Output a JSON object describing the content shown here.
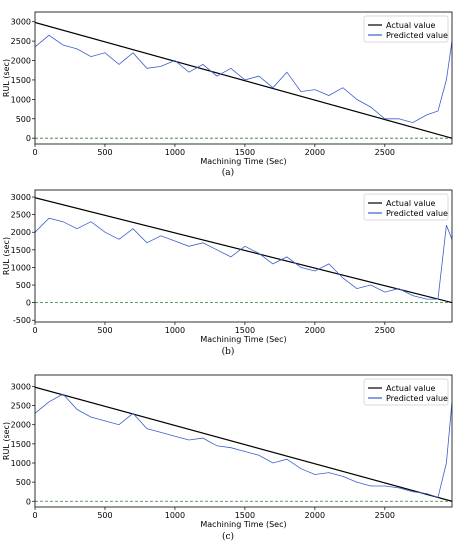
{
  "chart_data": [
    {
      "type": "line",
      "caption": "(a)",
      "xlabel": "Machining Time (Sec)",
      "ylabel": "RUL (sec)",
      "xlim": [
        0,
        2980
      ],
      "ylim": [
        -150,
        3250
      ],
      "xticks": [
        0,
        500,
        1000,
        1500,
        2000,
        2500
      ],
      "yticks": [
        0,
        500,
        1000,
        1500,
        2000,
        2500,
        3000
      ],
      "legend_position": "top-right",
      "baseline": {
        "y": 0,
        "color": "#2e7d32",
        "style": "dashed"
      },
      "series": [
        {
          "name": "Actual value",
          "color": "#000000",
          "x": [
            0,
            2980
          ],
          "y": [
            2980,
            0
          ]
        },
        {
          "name": "Predicted value",
          "color": "#3a5fcd",
          "x": [
            0,
            100,
            200,
            300,
            400,
            500,
            600,
            700,
            800,
            900,
            1000,
            1100,
            1200,
            1300,
            1400,
            1500,
            1600,
            1700,
            1800,
            1900,
            2000,
            2100,
            2200,
            2300,
            2400,
            2500,
            2600,
            2700,
            2800,
            2880,
            2940,
            2980
          ],
          "y": [
            2350,
            2650,
            2400,
            2300,
            2100,
            2200,
            1900,
            2200,
            1800,
            1850,
            2000,
            1700,
            1900,
            1600,
            1800,
            1500,
            1600,
            1300,
            1700,
            1200,
            1250,
            1100,
            1300,
            1000,
            800,
            500,
            500,
            400,
            600,
            700,
            1500,
            2500
          ]
        }
      ]
    },
    {
      "type": "line",
      "caption": "(b)",
      "xlabel": "Machining Time (Sec)",
      "ylabel": "RUL (sec)",
      "xlim": [
        0,
        2980
      ],
      "ylim": [
        -550,
        3200
      ],
      "xticks": [
        0,
        500,
        1000,
        1500,
        2000,
        2500
      ],
      "yticks": [
        -500,
        0,
        500,
        1000,
        1500,
        2000,
        2500,
        3000
      ],
      "legend_position": "top-right",
      "baseline": {
        "y": 0,
        "color": "#2e7d32",
        "style": "dashed"
      },
      "series": [
        {
          "name": "Actual value",
          "color": "#000000",
          "x": [
            0,
            2980
          ],
          "y": [
            2980,
            0
          ]
        },
        {
          "name": "Predicted value",
          "color": "#3a5fcd",
          "x": [
            0,
            100,
            200,
            300,
            400,
            500,
            600,
            700,
            800,
            900,
            1000,
            1100,
            1200,
            1300,
            1400,
            1500,
            1600,
            1700,
            1800,
            1900,
            2000,
            2100,
            2200,
            2300,
            2400,
            2500,
            2600,
            2700,
            2800,
            2880,
            2940,
            2980
          ],
          "y": [
            2000,
            2400,
            2300,
            2100,
            2300,
            2000,
            1800,
            2100,
            1700,
            1900,
            1750,
            1600,
            1700,
            1500,
            1300,
            1600,
            1400,
            1100,
            1300,
            1000,
            900,
            1100,
            700,
            400,
            500,
            300,
            400,
            200,
            100,
            100,
            2200,
            1800
          ]
        }
      ]
    },
    {
      "type": "line",
      "caption": "(c)",
      "xlabel": "Machining Time (Sec)",
      "ylabel": "RUL (sec)",
      "xlim": [
        0,
        2980
      ],
      "ylim": [
        -150,
        3300
      ],
      "xticks": [
        0,
        500,
        1000,
        1500,
        2000,
        2500
      ],
      "yticks": [
        0,
        500,
        1000,
        1500,
        2000,
        2500,
        3000
      ],
      "legend_position": "top-right",
      "baseline": {
        "y": 0,
        "color": "#2e7d32",
        "style": "dashed"
      },
      "series": [
        {
          "name": "Actual value",
          "color": "#000000",
          "x": [
            0,
            2980
          ],
          "y": [
            2980,
            0
          ]
        },
        {
          "name": "Predicted value",
          "color": "#3a5fcd",
          "x": [
            0,
            100,
            200,
            300,
            400,
            500,
            600,
            700,
            800,
            900,
            1000,
            1100,
            1200,
            1300,
            1400,
            1500,
            1600,
            1700,
            1800,
            1900,
            2000,
            2100,
            2200,
            2300,
            2400,
            2500,
            2600,
            2700,
            2800,
            2880,
            2940,
            2980
          ],
          "y": [
            2300,
            2600,
            2800,
            2400,
            2200,
            2100,
            2000,
            2300,
            1900,
            1800,
            1700,
            1600,
            1650,
            1450,
            1400,
            1300,
            1200,
            1000,
            1100,
            850,
            700,
            750,
            650,
            500,
            400,
            400,
            350,
            250,
            200,
            100,
            1000,
            2600
          ]
        }
      ]
    }
  ]
}
